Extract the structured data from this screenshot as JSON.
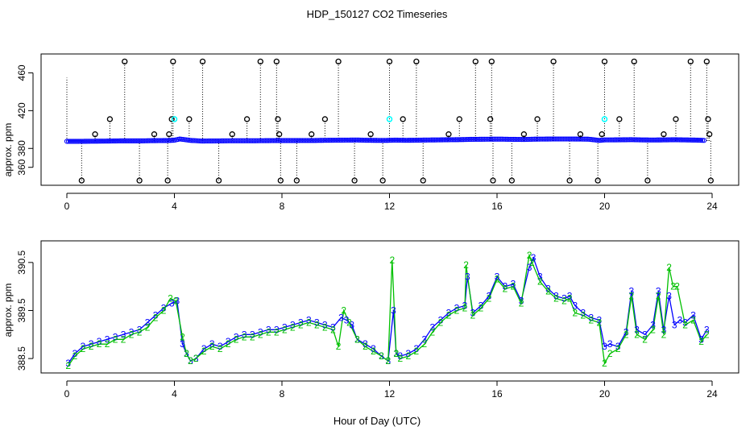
{
  "title": "HDP_150127  CO2 Timeseries",
  "xlabel": "Hour of Day (UTC)",
  "colors": {
    "blue": "#0000ff",
    "green": "#00c000",
    "cyan": "#00ffff",
    "black": "#000000"
  },
  "chart_data": [
    {
      "type": "scatter",
      "panel": "top",
      "ylabel": "approx. ppm",
      "xlim": [
        0,
        24
      ],
      "ylim": [
        341,
        480
      ],
      "xticks": [
        0,
        4,
        8,
        12,
        16,
        20,
        24
      ],
      "yticks": [
        360,
        380,
        420,
        460
      ],
      "baseline": {
        "x": [
          0.0,
          0.4,
          0.8,
          1.2,
          1.6,
          2.0,
          2.4,
          2.8,
          3.2,
          3.6,
          3.8,
          4.0,
          4.2,
          4.6,
          5.0,
          5.4,
          5.8,
          6.2,
          6.6,
          7.0,
          7.4,
          7.8,
          8.0,
          8.4,
          8.8,
          9.2,
          9.6,
          10.0,
          10.4,
          10.8,
          11.2,
          11.6,
          11.9,
          12.2,
          12.6,
          13.0,
          13.4,
          13.8,
          14.2,
          14.6,
          15.0,
          15.4,
          15.8,
          16.2,
          16.6,
          17.0,
          17.4,
          17.8,
          18.2,
          18.6,
          19.0,
          19.4,
          19.8,
          20.0,
          20.2,
          20.6,
          21.0,
          21.4,
          21.8,
          22.2,
          22.6,
          23.0,
          23.4,
          23.7
        ],
        "y": [
          387.5,
          387.5,
          387.6,
          387.7,
          387.8,
          388.0,
          388.0,
          388.0,
          388.2,
          388.3,
          388.4,
          388.7,
          390.0,
          388.5,
          387.8,
          387.9,
          388.0,
          388.1,
          388.1,
          388.1,
          388.2,
          388.3,
          388.3,
          388.3,
          388.4,
          388.4,
          388.6,
          388.7,
          388.8,
          388.9,
          388.6,
          388.5,
          388.5,
          388.8,
          388.6,
          388.7,
          388.9,
          389.0,
          389.2,
          389.3,
          389.6,
          389.7,
          389.8,
          389.8,
          389.6,
          389.5,
          389.8,
          389.9,
          390.0,
          390.0,
          389.9,
          389.8,
          388.5,
          389.0,
          389.0,
          389.1,
          389.3,
          389.0,
          388.9,
          389.0,
          389.2,
          389.0,
          388.8,
          388.5
        ]
      },
      "spikes": [
        {
          "x": 2.15,
          "y": 472
        },
        {
          "x": 3.95,
          "y": 472
        },
        {
          "x": 5.05,
          "y": 472
        },
        {
          "x": 7.2,
          "y": 472
        },
        {
          "x": 7.8,
          "y": 472
        },
        {
          "x": 10.1,
          "y": 472
        },
        {
          "x": 12.0,
          "y": 472
        },
        {
          "x": 13.0,
          "y": 472
        },
        {
          "x": 15.2,
          "y": 472
        },
        {
          "x": 15.8,
          "y": 472
        },
        {
          "x": 18.1,
          "y": 472
        },
        {
          "x": 20.0,
          "y": 472
        },
        {
          "x": 21.1,
          "y": 472
        },
        {
          "x": 23.2,
          "y": 472
        },
        {
          "x": 23.8,
          "y": 472
        },
        {
          "x": 1.6,
          "y": 411
        },
        {
          "x": 3.9,
          "y": 411
        },
        {
          "x": 4.55,
          "y": 411
        },
        {
          "x": 6.7,
          "y": 411
        },
        {
          "x": 7.85,
          "y": 411
        },
        {
          "x": 9.6,
          "y": 411
        },
        {
          "x": 12.5,
          "y": 411
        },
        {
          "x": 14.6,
          "y": 411
        },
        {
          "x": 15.75,
          "y": 411
        },
        {
          "x": 17.5,
          "y": 411
        },
        {
          "x": 20.55,
          "y": 411
        },
        {
          "x": 22.65,
          "y": 411
        },
        {
          "x": 23.85,
          "y": 411
        },
        {
          "x": 1.05,
          "y": 395
        },
        {
          "x": 3.25,
          "y": 395
        },
        {
          "x": 3.8,
          "y": 395
        },
        {
          "x": 6.15,
          "y": 395
        },
        {
          "x": 7.9,
          "y": 395
        },
        {
          "x": 9.1,
          "y": 395
        },
        {
          "x": 11.3,
          "y": 395
        },
        {
          "x": 14.2,
          "y": 395
        },
        {
          "x": 17.0,
          "y": 395
        },
        {
          "x": 19.1,
          "y": 395
        },
        {
          "x": 19.9,
          "y": 395
        },
        {
          "x": 22.2,
          "y": 395
        },
        {
          "x": 23.9,
          "y": 395
        },
        {
          "x": 0.55,
          "y": 346
        },
        {
          "x": 2.7,
          "y": 346
        },
        {
          "x": 3.75,
          "y": 346
        },
        {
          "x": 5.65,
          "y": 346
        },
        {
          "x": 7.95,
          "y": 346
        },
        {
          "x": 8.55,
          "y": 346
        },
        {
          "x": 10.7,
          "y": 346
        },
        {
          "x": 11.75,
          "y": 346
        },
        {
          "x": 13.25,
          "y": 346
        },
        {
          "x": 15.85,
          "y": 346
        },
        {
          "x": 16.55,
          "y": 346
        },
        {
          "x": 18.7,
          "y": 346
        },
        {
          "x": 19.75,
          "y": 346
        },
        {
          "x": 21.6,
          "y": 346
        },
        {
          "x": 23.95,
          "y": 346
        }
      ],
      "cyan_points": [
        {
          "x": 4.0,
          "y": 411
        },
        {
          "x": 12.0,
          "y": 411
        },
        {
          "x": 20.0,
          "y": 411
        }
      ]
    },
    {
      "type": "line",
      "panel": "bottom",
      "ylabel": "approx. ppm",
      "xlim": [
        0,
        24
      ],
      "ylim": [
        388.2,
        390.95
      ],
      "xticks": [
        0,
        4,
        8,
        12,
        16,
        20,
        24
      ],
      "yticks": [
        388.5,
        389.5,
        390.5
      ],
      "yticklabels": [
        "388.5",
        "389.5",
        "390.5"
      ],
      "series": [
        {
          "name": "3",
          "color": "#0000ff",
          "x": [
            0.05,
            0.3,
            0.6,
            0.9,
            1.2,
            1.5,
            1.8,
            2.1,
            2.4,
            2.7,
            3.0,
            3.3,
            3.6,
            3.9,
            4.1,
            4.3,
            4.45,
            4.6,
            4.8,
            5.1,
            5.4,
            5.7,
            6.0,
            6.3,
            6.6,
            6.9,
            7.2,
            7.5,
            7.8,
            8.1,
            8.4,
            8.7,
            9.0,
            9.3,
            9.6,
            9.9,
            10.2,
            10.4,
            10.6,
            10.8,
            11.1,
            11.4,
            11.7,
            11.95,
            12.15,
            12.25,
            12.4,
            12.7,
            13.0,
            13.3,
            13.6,
            13.9,
            14.2,
            14.5,
            14.8,
            14.9,
            15.1,
            15.4,
            15.7,
            16.0,
            16.3,
            16.6,
            16.9,
            17.2,
            17.35,
            17.6,
            17.9,
            18.2,
            18.5,
            18.7,
            18.9,
            19.2,
            19.5,
            19.8,
            20.0,
            20.2,
            20.5,
            20.8,
            21.0,
            21.2,
            21.5,
            21.8,
            22.0,
            22.2,
            22.4,
            22.6,
            22.8,
            23.0,
            23.3,
            23.6,
            23.8
          ],
          "y": [
            388.4,
            388.6,
            388.75,
            388.8,
            388.85,
            388.9,
            388.95,
            389.0,
            389.05,
            389.1,
            389.25,
            389.4,
            389.55,
            389.65,
            389.7,
            388.8,
            388.6,
            388.45,
            388.5,
            388.7,
            388.8,
            388.75,
            388.85,
            388.95,
            389.0,
            389.0,
            389.05,
            389.1,
            389.1,
            389.15,
            389.2,
            389.25,
            389.3,
            389.25,
            389.2,
            389.15,
            389.35,
            389.3,
            389.2,
            388.9,
            388.8,
            388.7,
            388.55,
            388.45,
            389.5,
            388.6,
            388.55,
            388.6,
            388.7,
            388.9,
            389.15,
            389.3,
            389.45,
            389.55,
            389.6,
            390.2,
            389.45,
            389.6,
            389.8,
            390.2,
            390.0,
            390.05,
            389.7,
            390.4,
            390.6,
            390.2,
            389.95,
            389.8,
            389.75,
            389.8,
            389.6,
            389.45,
            389.35,
            389.3,
            388.75,
            388.8,
            388.75,
            389.05,
            389.9,
            389.1,
            389.0,
            389.2,
            389.9,
            389.1,
            389.8,
            389.2,
            389.3,
            389.25,
            389.4,
            388.9,
            389.1
          ]
        },
        {
          "name": "2",
          "color": "#00c000",
          "x": [
            0.05,
            0.3,
            0.6,
            0.9,
            1.2,
            1.5,
            1.8,
            2.1,
            2.4,
            2.7,
            3.0,
            3.3,
            3.6,
            3.85,
            4.05,
            4.3,
            4.45,
            4.6,
            4.8,
            5.1,
            5.4,
            5.7,
            6.0,
            6.3,
            6.6,
            6.9,
            7.2,
            7.5,
            7.8,
            8.1,
            8.4,
            8.7,
            9.0,
            9.3,
            9.6,
            9.9,
            10.1,
            10.3,
            10.5,
            10.8,
            11.1,
            11.4,
            11.7,
            11.95,
            12.1,
            12.25,
            12.4,
            12.7,
            13.0,
            13.3,
            13.6,
            13.9,
            14.2,
            14.5,
            14.8,
            14.85,
            15.1,
            15.4,
            15.7,
            16.0,
            16.3,
            16.6,
            16.9,
            17.2,
            17.3,
            17.6,
            17.9,
            18.2,
            18.5,
            18.7,
            18.9,
            19.2,
            19.5,
            19.8,
            20.0,
            20.2,
            20.5,
            20.8,
            21.0,
            21.2,
            21.5,
            21.8,
            22.0,
            22.2,
            22.4,
            22.55,
            22.7,
            23.0,
            23.3,
            23.6,
            23.8
          ],
          "y": [
            388.35,
            388.55,
            388.7,
            388.75,
            388.8,
            388.8,
            388.9,
            388.9,
            389.0,
            389.05,
            389.15,
            389.35,
            389.5,
            389.75,
            389.7,
            388.95,
            388.6,
            388.45,
            388.5,
            388.65,
            388.75,
            388.7,
            388.8,
            388.9,
            388.95,
            388.95,
            389.0,
            389.05,
            389.05,
            389.1,
            389.15,
            389.2,
            389.25,
            389.2,
            389.15,
            389.1,
            388.75,
            389.5,
            389.25,
            388.9,
            388.75,
            388.65,
            388.55,
            388.45,
            390.55,
            388.6,
            388.5,
            388.55,
            388.65,
            388.8,
            389.05,
            389.25,
            389.4,
            389.5,
            389.55,
            390.45,
            389.4,
            389.55,
            389.75,
            390.15,
            389.95,
            390.0,
            389.65,
            390.65,
            390.5,
            390.1,
            389.9,
            389.75,
            389.7,
            389.75,
            389.45,
            389.4,
            389.3,
            389.25,
            388.4,
            388.6,
            388.7,
            389.0,
            389.8,
            389.0,
            388.9,
            389.1,
            389.8,
            389.0,
            390.4,
            390.0,
            390.0,
            389.2,
            389.3,
            388.85,
            389.0
          ]
        }
      ]
    }
  ]
}
